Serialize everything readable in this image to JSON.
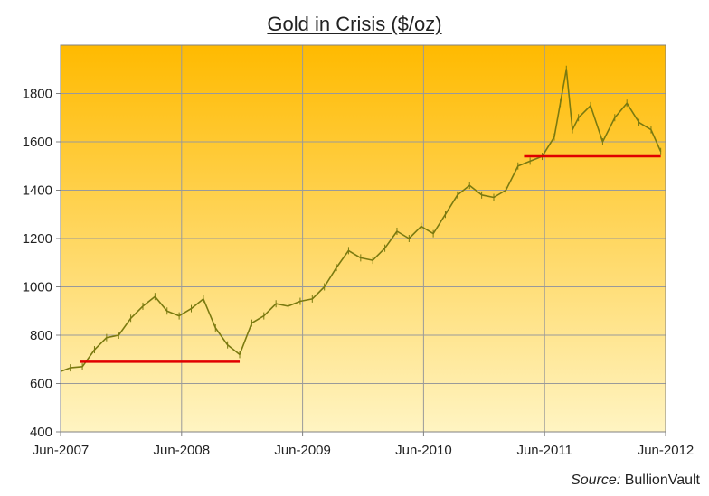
{
  "chart_data": {
    "type": "line",
    "title": "Gold in Crisis ($/oz)",
    "xlabel": "",
    "ylabel": "",
    "ylim": [
      400,
      2000
    ],
    "y_ticks": [
      400,
      600,
      800,
      1000,
      1200,
      1400,
      1600,
      1800
    ],
    "x_ticks": [
      "Jun-2007",
      "Jun-2008",
      "Jun-2009",
      "Jun-2010",
      "Jun-2011",
      "Jun-2012"
    ],
    "grid": true,
    "background_gradient": [
      "#ffba00",
      "#fff4c2"
    ],
    "line_color": "#7a7a10",
    "reference_color": "#e00000",
    "series": [
      {
        "x": [
          2007.42,
          2007.5,
          2007.6,
          2007.7,
          2007.8,
          2007.9,
          2008.0,
          2008.1,
          2008.2,
          2008.3,
          2008.4,
          2008.5,
          2008.6,
          2008.7,
          2008.8,
          2008.9,
          2009.0,
          2009.1,
          2009.2,
          2009.3,
          2009.4,
          2009.5,
          2009.6,
          2009.7,
          2009.8,
          2009.9,
          2010.0,
          2010.1,
          2010.2,
          2010.3,
          2010.4,
          2010.5,
          2010.6,
          2010.7,
          2010.8,
          2010.9,
          2011.0,
          2011.1,
          2011.2,
          2011.3,
          2011.4,
          2011.5,
          2011.55,
          2011.6,
          2011.65,
          2011.7,
          2011.8,
          2011.9,
          2012.0,
          2012.1,
          2012.2,
          2012.3,
          2012.38
        ],
        "values": [
          650,
          665,
          670,
          740,
          790,
          800,
          870,
          920,
          960,
          900,
          880,
          910,
          950,
          830,
          760,
          720,
          850,
          880,
          930,
          920,
          940,
          950,
          1000,
          1080,
          1150,
          1120,
          1110,
          1160,
          1230,
          1200,
          1250,
          1220,
          1300,
          1380,
          1420,
          1380,
          1370,
          1400,
          1500,
          1520,
          1540,
          1620,
          1760,
          1900,
          1650,
          1700,
          1750,
          1600,
          1700,
          1760,
          1680,
          1650,
          1560
        ]
      }
    ],
    "reference_lines": [
      {
        "x_start": 2007.58,
        "x_end": 2008.9,
        "value": 690
      },
      {
        "x_start": 2011.25,
        "x_end": 2012.38,
        "value": 1540
      }
    ]
  },
  "source": {
    "label": "Source:",
    "value": "BullionVault"
  }
}
